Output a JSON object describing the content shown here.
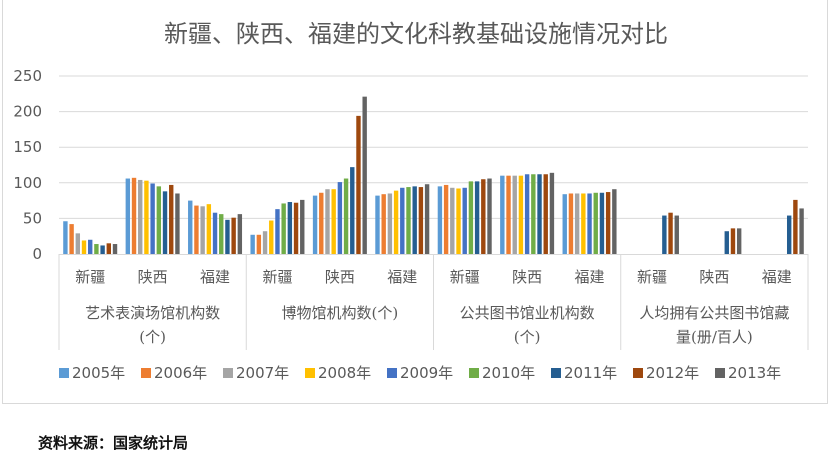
{
  "chart_data": {
    "type": "bar",
    "title": "新疆、陕西、福建的文化科教基础设施情况对比",
    "xlabel": "",
    "ylabel": "",
    "ylim": [
      0,
      250
    ],
    "yticks": [
      "0",
      "50",
      "100",
      "150",
      "200",
      "250"
    ],
    "grid": true,
    "legend_position": "bottom",
    "groups": [
      {
        "label_lines": [
          "艺术表演场馆机构数",
          "(个)"
        ],
        "categories": [
          "新疆",
          "陕西",
          "福建"
        ]
      },
      {
        "label_lines": [
          "博物馆机构数(个)"
        ],
        "categories": [
          "新疆",
          "陕西",
          "福建"
        ]
      },
      {
        "label_lines": [
          "公共图书馆业机构数",
          "(个)"
        ],
        "categories": [
          "新疆",
          "陕西",
          "福建"
        ]
      },
      {
        "label_lines": [
          "人均拥有公共图书馆藏",
          "量(册/百人)"
        ],
        "categories": [
          "新疆",
          "陕西",
          "福建"
        ]
      }
    ],
    "series": [
      {
        "name": "2005年",
        "color": "#5B9BD5",
        "values": [
          46,
          106,
          75,
          27,
          82,
          82,
          95,
          110,
          84,
          null,
          null,
          null
        ]
      },
      {
        "name": "2006年",
        "color": "#ED7D31",
        "values": [
          42,
          107,
          68,
          27,
          86,
          84,
          97,
          110,
          85,
          null,
          null,
          null
        ]
      },
      {
        "name": "2007年",
        "color": "#A5A5A5",
        "values": [
          29,
          104,
          67,
          32,
          91,
          85,
          93,
          110,
          85,
          null,
          null,
          null
        ]
      },
      {
        "name": "2008年",
        "color": "#FFC000",
        "values": [
          19,
          103,
          70,
          47,
          91,
          89,
          92,
          110,
          85,
          null,
          null,
          null
        ]
      },
      {
        "name": "2009年",
        "color": "#4472C4",
        "values": [
          20,
          99,
          58,
          63,
          101,
          93,
          93,
          112,
          85,
          null,
          null,
          null
        ]
      },
      {
        "name": "2010年",
        "color": "#70AD47",
        "values": [
          14,
          95,
          56,
          71,
          106,
          94,
          102,
          112,
          86,
          null,
          null,
          null
        ]
      },
      {
        "name": "2011年",
        "color": "#255E91",
        "values": [
          12,
          88,
          48,
          73,
          122,
          95,
          102,
          112,
          86,
          54,
          32,
          54
        ]
      },
      {
        "name": "2012年",
        "color": "#9E480E",
        "values": [
          15,
          97,
          51,
          72,
          194,
          94,
          105,
          112,
          87,
          58,
          36,
          76
        ]
      },
      {
        "name": "2013年",
        "color": "#636363",
        "values": [
          14,
          85,
          56,
          76,
          221,
          98,
          106,
          114,
          91,
          54,
          36,
          64
        ]
      }
    ]
  },
  "colors": {
    "gridline": "#d9d9d9",
    "text": "#595959",
    "border": "#d9d9d9"
  },
  "source_note": "资料来源：国家统计局"
}
